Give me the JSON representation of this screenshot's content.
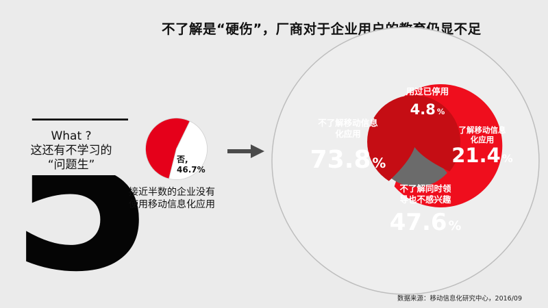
{
  "title": "不了解是“硬伤”，厂商对于企业用户的教育仍显不足",
  "left": {
    "big_number": "5",
    "question_lines": [
      "What ?",
      "这还有不学习的",
      "“问题生”"
    ]
  },
  "pie": {
    "label_name": "否,",
    "label_value": "46.7%",
    "caption_lines": [
      "接近半数的企业没有",
      "使用移动信息化应用"
    ]
  },
  "chart_data": [
    {
      "type": "pie",
      "categories": [
        "",
        "否"
      ],
      "values": [
        53.3,
        46.7
      ],
      "colors": [
        "#e5001a",
        "#ffffff"
      ]
    },
    {
      "type": "bubble",
      "categories": [
        "不了解移动信息化应用",
        "用过已停用",
        "了解移动信息化应用",
        "不了解同时领导也不感兴趣"
      ],
      "values": [
        73.8,
        4.8,
        21.4,
        47.6
      ],
      "unit": "%",
      "colors": [
        "#ef0e1d",
        "#3e3e3e",
        "#6b6b6b",
        "#c50d14"
      ]
    }
  ],
  "bubbles": [
    {
      "lines": [
        "不了解移动信息",
        "化应用"
      ],
      "value": "73.8",
      "unit": "%",
      "color": "#ef0e1d"
    },
    {
      "lines": [
        "用过已停用"
      ],
      "value": "4.8",
      "unit": "%",
      "color": "#3e3e3e"
    },
    {
      "lines": [
        "了解移动信息",
        "化应用"
      ],
      "value": "21.4",
      "unit": "%",
      "color": "#6b6b6b"
    },
    {
      "lines": [
        "不了解同时领",
        "导也不感兴趣"
      ],
      "value": "47.6",
      "unit": "%",
      "color": "#c50d14"
    }
  ],
  "source": "数据来源：移动信息化研究中心，2016/09"
}
